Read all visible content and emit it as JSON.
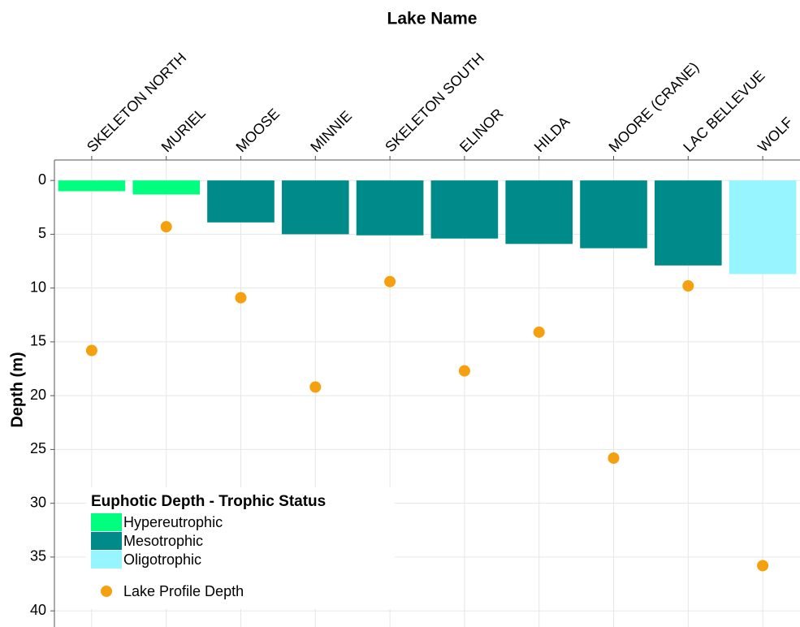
{
  "chart_data": {
    "type": "bar",
    "x_title": "Lake Name",
    "y_title": "Depth (m)",
    "categories": [
      "SKELETON NORTH",
      "MURIEL",
      "MOOSE",
      "MINNIE",
      "SKELETON SOUTH",
      "ELINOR",
      "HILDA",
      "MOORE (CRANE)",
      "LAC BELLEVUE",
      "WOLF"
    ],
    "legend_title": "Euphotic Depth - Trophic Status",
    "series": [
      {
        "name": "Hypereutrophic",
        "color": "#00ff7f",
        "values": [
          1.0,
          1.3,
          null,
          null,
          null,
          null,
          null,
          null,
          null,
          null
        ]
      },
      {
        "name": "Mesotrophic",
        "color": "#008b8b",
        "values": [
          null,
          null,
          3.9,
          5.0,
          5.1,
          5.4,
          5.9,
          6.3,
          7.9,
          null
        ]
      },
      {
        "name": "Oligotrophic",
        "color": "#97f5ff",
        "values": [
          null,
          null,
          null,
          null,
          null,
          null,
          null,
          null,
          null,
          8.7
        ]
      },
      {
        "name": "Lake Profile Depth",
        "type": "scatter",
        "color": "#f5a00f",
        "values": [
          15.8,
          4.3,
          10.9,
          19.2,
          9.4,
          17.7,
          14.1,
          25.8,
          9.8,
          35.8
        ]
      }
    ],
    "ylim": [
      -1.9,
      41.5
    ],
    "y_reversed": true,
    "yticks": [
      0,
      5,
      10,
      15,
      20,
      25,
      30,
      35,
      40
    ],
    "grid": true,
    "legend_position": "bottom-left"
  }
}
